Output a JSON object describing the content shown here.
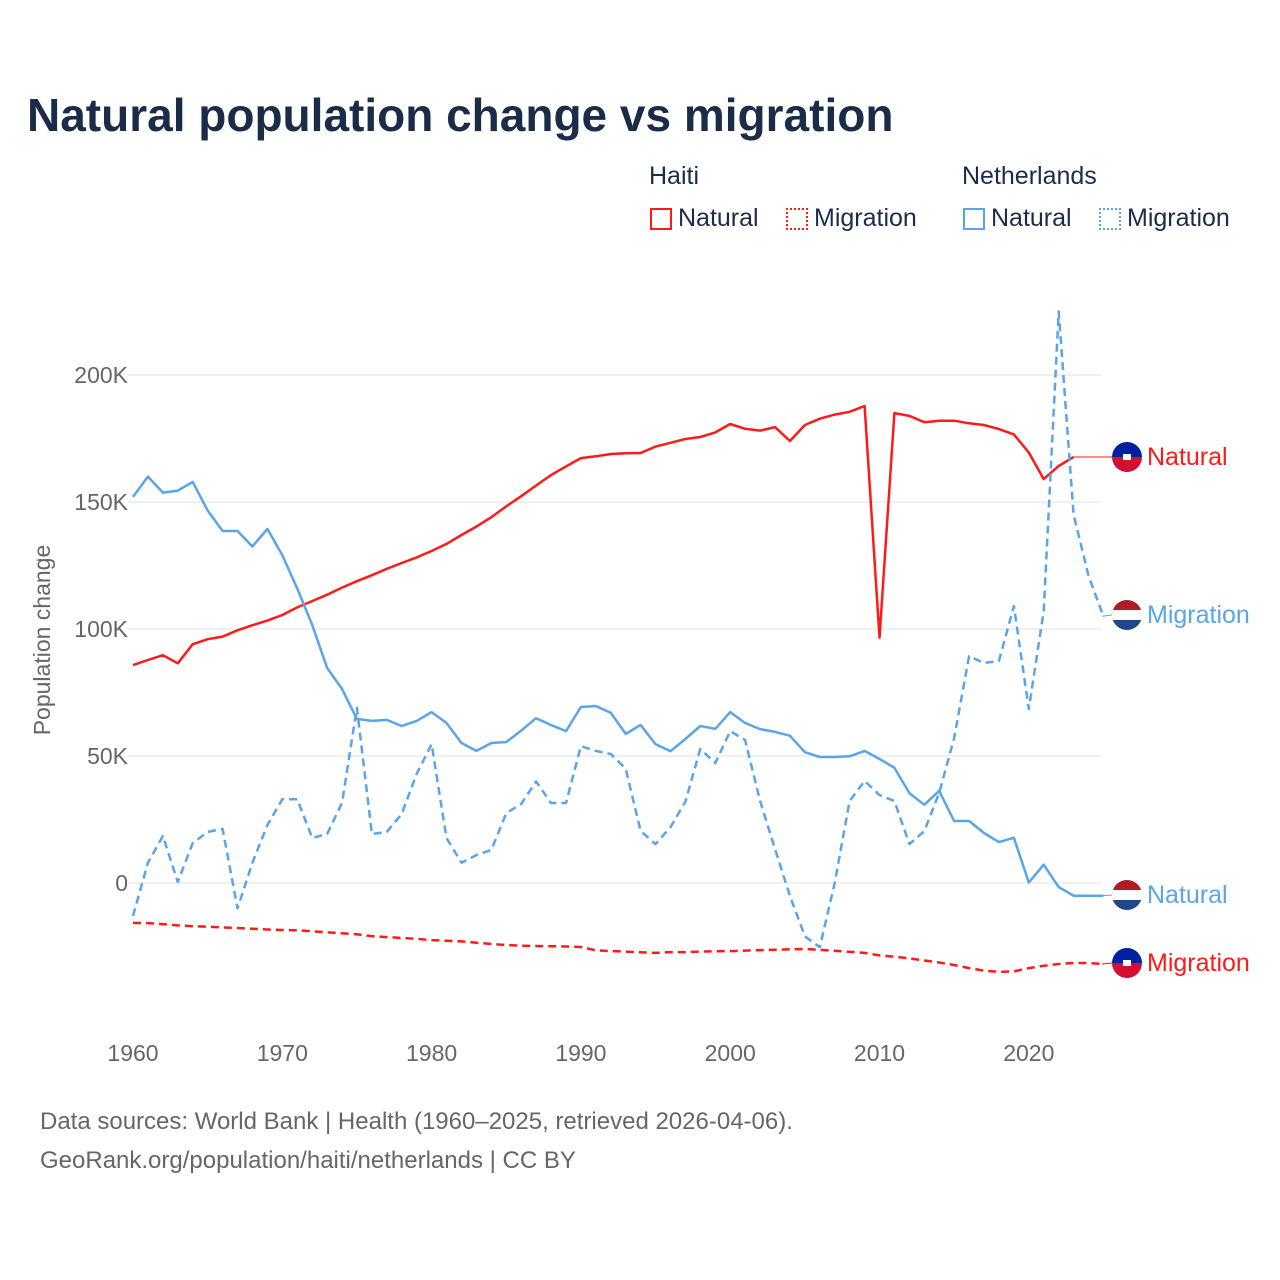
{
  "title": "Natural population change vs migration",
  "legend": {
    "groups": [
      {
        "name": "Haiti",
        "items": [
          "Natural",
          "Migration"
        ]
      },
      {
        "name": "Netherlands",
        "items": [
          "Natural",
          "Migration"
        ]
      }
    ]
  },
  "footer": {
    "line1": "Data sources: World Bank | Health (1960–2025, retrieved 2026-04-06).",
    "line2": "GeoRank.org/population/haiti/netherlands | CC BY"
  },
  "colors": {
    "haiti": "#ff1a1a",
    "netherlands": "#5aa5ea",
    "title": "#1b2c48"
  },
  "chart_data": {
    "type": "line",
    "title": "Natural population change vs migration",
    "xlabel": "",
    "ylabel": "Population change",
    "xlim": [
      1960,
      2025
    ],
    "ylim": [
      -50000,
      230000
    ],
    "x_ticks": [
      1960,
      1970,
      1980,
      1990,
      2000,
      2010,
      2020
    ],
    "x_tick_labels": [
      "1960",
      "1970",
      "1980",
      "1990",
      "2000",
      "2010",
      "2020"
    ],
    "y_ticks": [
      0,
      50000,
      100000,
      150000,
      200000
    ],
    "y_tick_labels": [
      "0",
      "50K",
      "100K",
      "150K",
      "200K"
    ],
    "grid": true,
    "legend_position": "top-right",
    "series": [
      {
        "name": "Haiti Natural",
        "end_label": "Natural",
        "country": "haiti",
        "dashed": false,
        "start": 1960,
        "values": [
          85800,
          87800,
          89700,
          86500,
          94000,
          96000,
          97000,
          99500,
          101500,
          103300,
          105500,
          108500,
          111000,
          113500,
          116300,
          118800,
          121200,
          123700,
          126000,
          128200,
          130700,
          133500,
          137000,
          140300,
          144000,
          148300,
          152300,
          156500,
          160600,
          164000,
          167300,
          168000,
          168900,
          169200,
          169300,
          171800,
          173300,
          174800,
          175600,
          177400,
          180700,
          178800,
          178100,
          179500,
          174000,
          180300,
          182800,
          184400,
          185500,
          187800,
          96600,
          185000,
          183900,
          181400,
          182000,
          182000,
          181000,
          180300,
          178700,
          176600,
          169500,
          159000,
          164200,
          167700
        ]
      },
      {
        "name": "Haiti Migration",
        "end_label": "Migration",
        "country": "haiti",
        "dashed": true,
        "start": 1960,
        "values": [
          -15700,
          -15800,
          -16200,
          -16700,
          -17000,
          -17200,
          -17500,
          -17700,
          -18000,
          -18300,
          -18500,
          -18600,
          -19000,
          -19400,
          -19800,
          -20200,
          -20900,
          -21300,
          -21600,
          -22000,
          -22500,
          -22700,
          -23000,
          -23500,
          -24000,
          -24400,
          -24700,
          -24800,
          -24900,
          -25000,
          -25200,
          -26500,
          -26800,
          -27000,
          -27300,
          -27500,
          -27200,
          -27200,
          -27000,
          -26900,
          -26800,
          -26600,
          -26400,
          -26300,
          -26100,
          -26000,
          -26300,
          -26700,
          -27100,
          -27500,
          -28500,
          -29000,
          -29700,
          -30500,
          -31300,
          -32300,
          -33500,
          -34500,
          -35000,
          -34800,
          -33500,
          -32600,
          -31900,
          -31500,
          -31500,
          -31900
        ]
      },
      {
        "name": "Netherlands Natural",
        "end_label": "Natural",
        "country": "netherlands",
        "dashed": false,
        "start": 1960,
        "values": [
          152000,
          160000,
          153700,
          154500,
          157900,
          146600,
          138600,
          138600,
          132500,
          139400,
          129100,
          116000,
          101600,
          84700,
          76400,
          64600,
          63800,
          64200,
          61800,
          63800,
          67300,
          63000,
          55100,
          52000,
          55100,
          55500,
          60000,
          64900,
          62200,
          59800,
          69300,
          69700,
          67000,
          58700,
          62200,
          54700,
          51900,
          56700,
          61800,
          60700,
          67300,
          63000,
          60600,
          59500,
          58000,
          51500,
          49600,
          49600,
          49900,
          52000,
          48800,
          45400,
          35400,
          30800,
          36300,
          24400,
          24400,
          19700,
          16100,
          17800,
          200,
          7200,
          -1600,
          -5000,
          -5000,
          -5000
        ]
      },
      {
        "name": "Netherlands Migration",
        "end_label": "Migration",
        "country": "netherlands",
        "dashed": true,
        "start": 1960,
        "values": [
          -13000,
          8000,
          18500,
          400,
          15700,
          20100,
          21300,
          -10000,
          8000,
          22800,
          33000,
          33000,
          17700,
          19300,
          31500,
          69000,
          19300,
          20100,
          27200,
          43000,
          54700,
          17700,
          8000,
          11000,
          13000,
          27500,
          31100,
          40000,
          31500,
          31500,
          53900,
          52000,
          50800,
          45000,
          20500,
          15300,
          22000,
          32000,
          52800,
          47200,
          59800,
          56300,
          32300,
          13400,
          -5000,
          -21000,
          -25300,
          0,
          32300,
          40200,
          34600,
          32300,
          15300,
          20400,
          35500,
          57000,
          89300,
          86600,
          87400,
          109000,
          68500,
          107000,
          225000,
          145000,
          121000,
          105000
        ]
      }
    ]
  }
}
